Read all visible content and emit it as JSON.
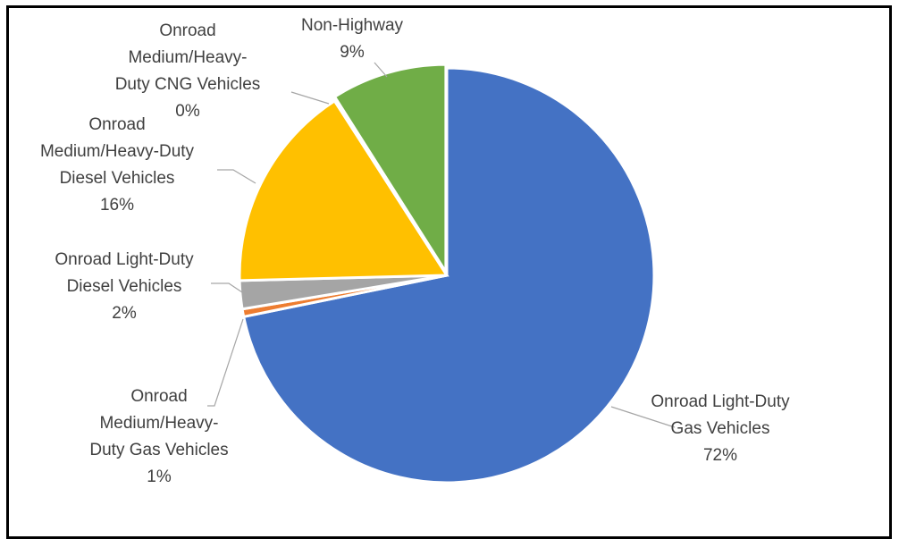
{
  "chart_data": {
    "type": "pie",
    "title": "",
    "start_angle_deg": 0,
    "direction": "clockwise",
    "slices": [
      {
        "label_lines": [
          "Onroad Light-Duty",
          "Gas Vehicles"
        ],
        "percent_label": "72%",
        "value": 71.8,
        "color": "#4472C4"
      },
      {
        "label_lines": [
          "Onroad",
          "Medium/Heavy-",
          "Duty Gas Vehicles"
        ],
        "percent_label": "1%",
        "value": 0.6,
        "color": "#ED7D31"
      },
      {
        "label_lines": [
          "Onroad Light-Duty",
          "Diesel Vehicles"
        ],
        "percent_label": "2%",
        "value": 2.2,
        "color": "#A5A5A5"
      },
      {
        "label_lines": [
          "Onroad",
          "Medium/Heavy-Duty",
          "Diesel Vehicles"
        ],
        "percent_label": "16%",
        "value": 16.3,
        "color": "#FFC000"
      },
      {
        "label_lines": [
          "Onroad",
          "Medium/Heavy-",
          "Duty CNG Vehicles"
        ],
        "percent_label": "0%",
        "value": 0.1,
        "color": "#5B9BD5"
      },
      {
        "label_lines": [
          "Non-Highway"
        ],
        "percent_label": "9%",
        "value": 9.0,
        "color": "#70AD47"
      }
    ]
  }
}
